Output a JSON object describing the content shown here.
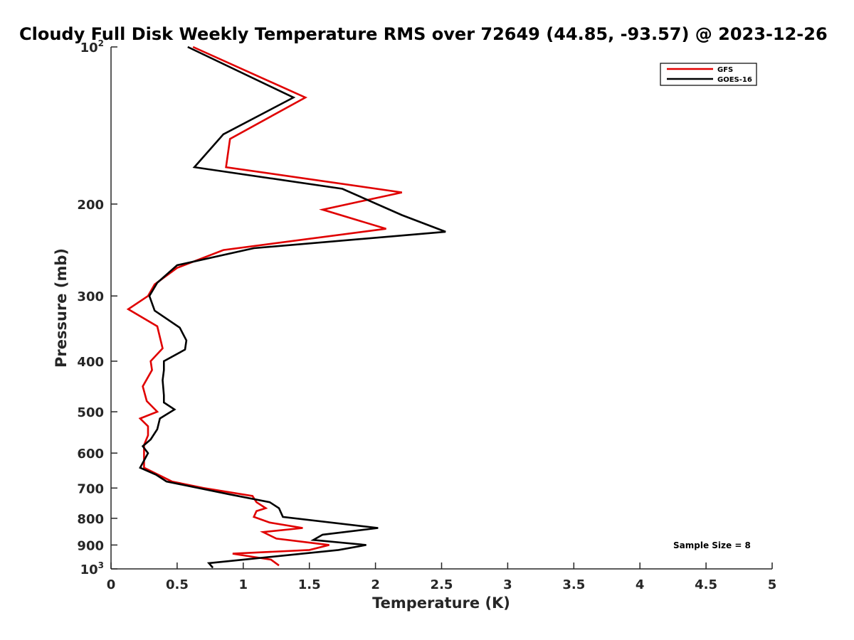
{
  "chart_data": {
    "type": "line",
    "title": "Cloudy Full Disk Weekly Temperature RMS over 72649 (44.85, -93.57) @ 2023-12-26",
    "xlabel": "Temperature (K)",
    "ylabel": "Pressure (mb)",
    "xlim": [
      0,
      5
    ],
    "ylim": [
      100,
      1000
    ],
    "y_scale": "log",
    "y_reversed": true,
    "x_ticks": [
      "0",
      "0.5",
      "1",
      "1.5",
      "2",
      "2.5",
      "3",
      "3.5",
      "4",
      "4.5",
      "5"
    ],
    "y_ticks": [
      {
        "value": 100,
        "base": "10",
        "exp": "2"
      },
      {
        "value": 200,
        "label": "200"
      },
      {
        "value": 300,
        "label": "300"
      },
      {
        "value": 400,
        "label": "400"
      },
      {
        "value": 500,
        "label": "500"
      },
      {
        "value": 600,
        "label": "600"
      },
      {
        "value": 700,
        "label": "700"
      },
      {
        "value": 800,
        "label": "800"
      },
      {
        "value": 900,
        "label": "900"
      },
      {
        "value": 1000,
        "base": "10",
        "exp": "3"
      }
    ],
    "grid": false,
    "legend_position": "top-right",
    "annotation": "Sample Size = 8",
    "series": [
      {
        "name": "GFS",
        "color": "#e00000",
        "points": [
          [
            0.62,
            100
          ],
          [
            1.47,
            125
          ],
          [
            0.9,
            150
          ],
          [
            0.87,
            170
          ],
          [
            2.2,
            190
          ],
          [
            1.6,
            205
          ],
          [
            2.08,
            223
          ],
          [
            0.85,
            245
          ],
          [
            0.5,
            265
          ],
          [
            0.33,
            285
          ],
          [
            0.28,
            300
          ],
          [
            0.13,
            318
          ],
          [
            0.35,
            343
          ],
          [
            0.39,
            378
          ],
          [
            0.3,
            400
          ],
          [
            0.31,
            416
          ],
          [
            0.24,
            447
          ],
          [
            0.27,
            477
          ],
          [
            0.35,
            500
          ],
          [
            0.22,
            515
          ],
          [
            0.28,
            533
          ],
          [
            0.28,
            555
          ],
          [
            0.25,
            579
          ],
          [
            0.25,
            612
          ],
          [
            0.25,
            640
          ],
          [
            0.46,
            680
          ],
          [
            0.7,
            700
          ],
          [
            1.07,
            725
          ],
          [
            1.1,
            745
          ],
          [
            1.17,
            765
          ],
          [
            1.1,
            775
          ],
          [
            1.08,
            795
          ],
          [
            1.2,
            815
          ],
          [
            1.45,
            835
          ],
          [
            1.15,
            850
          ],
          [
            1.25,
            875
          ],
          [
            1.65,
            900
          ],
          [
            1.5,
            920
          ],
          [
            0.92,
            935
          ],
          [
            1.21,
            960
          ],
          [
            1.27,
            985
          ]
        ]
      },
      {
        "name": "GOES-16",
        "color": "#000000",
        "points": [
          [
            0.58,
            100
          ],
          [
            1.38,
            125
          ],
          [
            0.85,
            147
          ],
          [
            0.63,
            170
          ],
          [
            1.75,
            187
          ],
          [
            2.2,
            210
          ],
          [
            2.53,
            226
          ],
          [
            1.08,
            243
          ],
          [
            0.5,
            262
          ],
          [
            0.35,
            283
          ],
          [
            0.29,
            300
          ],
          [
            0.33,
            320
          ],
          [
            0.52,
            345
          ],
          [
            0.57,
            365
          ],
          [
            0.56,
            380
          ],
          [
            0.4,
            400
          ],
          [
            0.4,
            416
          ],
          [
            0.39,
            435
          ],
          [
            0.4,
            465
          ],
          [
            0.4,
            480
          ],
          [
            0.48,
            495
          ],
          [
            0.37,
            515
          ],
          [
            0.35,
            540
          ],
          [
            0.3,
            565
          ],
          [
            0.24,
            582
          ],
          [
            0.28,
            600
          ],
          [
            0.22,
            640
          ],
          [
            0.34,
            660
          ],
          [
            0.42,
            680
          ],
          [
            0.9,
            720
          ],
          [
            1.2,
            745
          ],
          [
            1.27,
            765
          ],
          [
            1.3,
            795
          ],
          [
            2.02,
            835
          ],
          [
            1.6,
            860
          ],
          [
            1.53,
            880
          ],
          [
            1.93,
            900
          ],
          [
            1.72,
            920
          ],
          [
            0.74,
            975
          ],
          [
            0.77,
            995
          ]
        ]
      }
    ]
  }
}
